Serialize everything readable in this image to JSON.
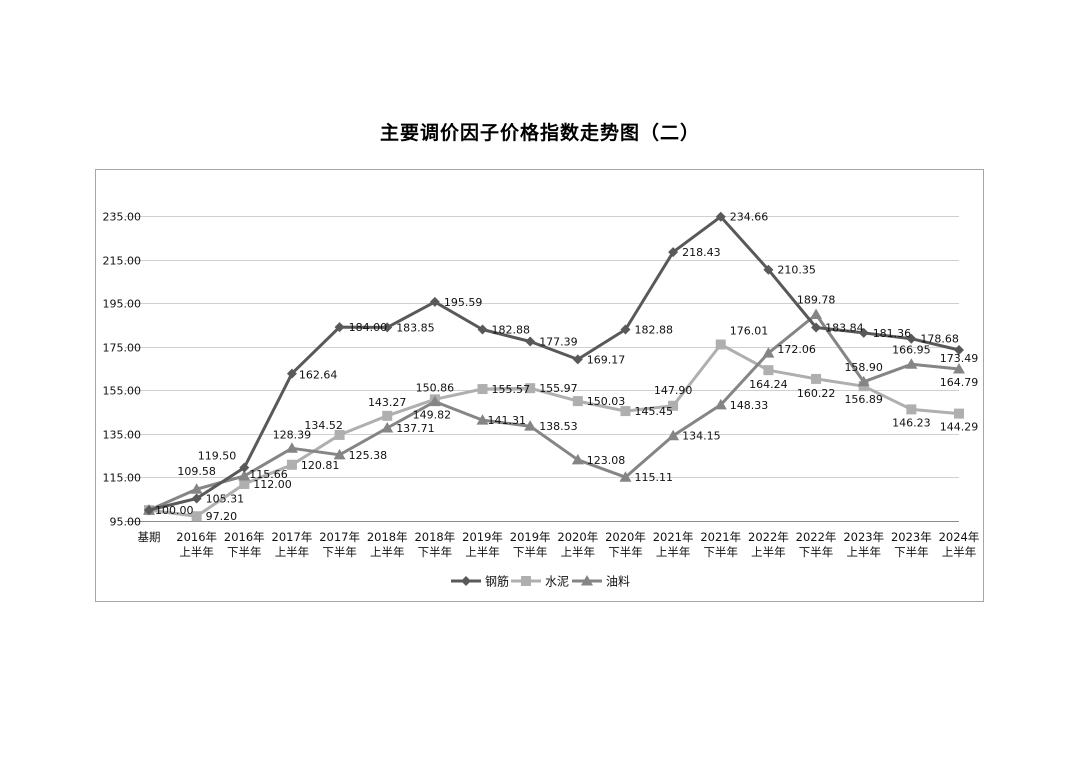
{
  "chart_data": {
    "type": "line",
    "title": "主要调价因子价格指数走势图（二）",
    "xlabel": "",
    "ylabel": "",
    "ylim": [
      95,
      235
    ],
    "yticks": [
      95,
      115,
      135,
      155,
      175,
      195,
      215,
      235
    ],
    "ytick_labels": [
      "95.00",
      "115.00",
      "135.00",
      "155.00",
      "175.00",
      "195.00",
      "215.00",
      "235.00"
    ],
    "grid": "horizontal",
    "legend": "bottom",
    "categories": [
      [
        "基期",
        ""
      ],
      [
        "2016年",
        "上半年"
      ],
      [
        "2016年",
        "下半年"
      ],
      [
        "2017年",
        "上半年"
      ],
      [
        "2017年",
        "下半年"
      ],
      [
        "2018年",
        "上半年"
      ],
      [
        "2018年",
        "下半年"
      ],
      [
        "2019年",
        "上半年"
      ],
      [
        "2019年",
        "下半年"
      ],
      [
        "2020年",
        "上半年"
      ],
      [
        "2020年",
        "下半年"
      ],
      [
        "2021年",
        "上半年"
      ],
      [
        "2021年",
        "下半年"
      ],
      [
        "2022年",
        "上半年"
      ],
      [
        "2022年",
        "下半年"
      ],
      [
        "2023年",
        "上半年"
      ],
      [
        "2023年",
        "下半年"
      ],
      [
        "2024年",
        "上半年"
      ]
    ],
    "series": [
      {
        "name": "钢筋",
        "marker": "diamond",
        "color": "#595959",
        "values": [
          100.0,
          105.31,
          119.5,
          162.64,
          184.0,
          183.85,
          195.59,
          182.88,
          177.39,
          169.17,
          182.88,
          218.43,
          234.66,
          210.35,
          183.84,
          181.36,
          178.68,
          173.49
        ],
        "labels": [
          "100.00",
          "105.31",
          "119.50",
          "162.64",
          "184.00",
          "183.85",
          "195.59",
          "182.88",
          "177.39",
          "169.17",
          "182.88",
          "218.43",
          "234.66",
          "210.35",
          "183.84",
          "181.36",
          "178.68",
          "173.49"
        ]
      },
      {
        "name": "水泥",
        "marker": "square",
        "color": "#afafaf",
        "values": [
          100.0,
          97.2,
          112.0,
          120.81,
          134.52,
          143.27,
          150.86,
          155.57,
          155.97,
          150.03,
          145.45,
          147.9,
          176.01,
          164.24,
          160.22,
          156.89,
          146.23,
          144.29
        ],
        "labels": [
          "",
          "97.20",
          "112.00",
          "120.81",
          "134.52",
          "143.27",
          "150.86",
          "155.57",
          "155.97",
          "150.03",
          "145.45",
          "147.90",
          "176.01",
          "164.24",
          "160.22",
          "156.89",
          "146.23",
          "144.29"
        ]
      },
      {
        "name": "油料",
        "marker": "triangle",
        "color": "#858585",
        "values": [
          100.0,
          109.58,
          115.66,
          128.39,
          125.38,
          137.71,
          149.82,
          141.31,
          138.53,
          123.08,
          115.11,
          134.15,
          148.33,
          172.06,
          189.78,
          158.9,
          166.95,
          164.79
        ],
        "labels": [
          "",
          "109.58",
          "115.66",
          "128.39",
          "125.38",
          "137.71",
          "149.82",
          "141.31",
          "138.53",
          "123.08",
          "115.11",
          "134.15",
          "148.33",
          "172.06",
          "189.78",
          "158.90",
          "166.95",
          "164.79"
        ]
      }
    ]
  }
}
